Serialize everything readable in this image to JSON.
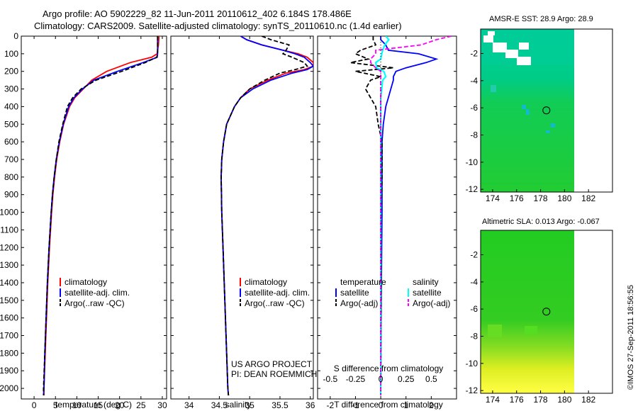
{
  "header": {
    "line1": "Argo profile: AO 5902229_82 11-Jun-2011 20110612_402 6.184S 178.486E",
    "line2": "Climatology: CARS2009. Satellite-adjusted climatology: synTS_20110610.nc (1.4d earlier)"
  },
  "footer": {
    "project": "US ARGO PROJECT",
    "pi": "PI: DEAN ROEMMICH",
    "stamp": "©IMOS 27-Sep-2011 18:56:55"
  },
  "depth_ticks": [
    "0",
    "100",
    "200",
    "300",
    "400",
    "500",
    "600",
    "700",
    "800",
    "900",
    "1000",
    "1100",
    "1200",
    "1300",
    "1400",
    "1500",
    "1600",
    "1700",
    "1800",
    "1900",
    "2000"
  ],
  "legend_profile": {
    "climatology": "climatology",
    "satellite": "satellite-adj. clim.",
    "argo": "Argo(..raw -QC)"
  },
  "legend_diff": {
    "temperature_head": "temperature",
    "salinity_head": "salinity",
    "t_sat": "satellite",
    "t_argo": "Argo(-adj)",
    "s_sat": "satellite",
    "s_argo": "Argo(-adj)"
  },
  "colors": {
    "climatology": "#ff0000",
    "satellite": "#0000ff",
    "argo": "#000000",
    "salinity_sat": "#00ffff",
    "salinity_argo": "#ff00ff",
    "sst_land": "#ffffff",
    "sla_low": "#ffff33",
    "sla_mid": "#00cc00"
  },
  "chart_data": [
    {
      "type": "line",
      "title": "",
      "xlabel": "temperature (deg C)",
      "ylabel": "",
      "xlim": [
        -3,
        31
      ],
      "ylim": [
        2060,
        0
      ],
      "xticks": [
        "0",
        "5",
        "10",
        "15",
        "20",
        "25",
        "30"
      ],
      "xtick_values": [
        0,
        5,
        10,
        15,
        20,
        25,
        30
      ],
      "depth": [
        0,
        10,
        50,
        100,
        120,
        150,
        200,
        250,
        300,
        350,
        400,
        500,
        600,
        700,
        800,
        900,
        1000,
        1200,
        1400,
        1600,
        1800,
        2000,
        2040
      ],
      "series": [
        {
          "name": "climatology",
          "values": [
            29.2,
            29.2,
            29.1,
            28.8,
            27.5,
            22.5,
            17.0,
            13.5,
            11.5,
            9.5,
            8.3,
            6.9,
            6.0,
            5.3,
            4.8,
            4.4,
            4.1,
            3.6,
            3.2,
            2.9,
            2.6,
            2.3,
            2.3
          ]
        },
        {
          "name": "satellite-adj. clim.",
          "values": [
            28.9,
            28.9,
            28.9,
            28.9,
            28.8,
            25.5,
            19.5,
            14.0,
            11.3,
            9.3,
            8.1,
            6.8,
            5.9,
            5.2,
            4.7,
            4.3,
            4.0,
            3.5,
            3.1,
            2.8,
            2.5,
            2.3,
            2.2
          ]
        },
        {
          "name": "Argo(..raw -QC)",
          "values": [
            28.9,
            28.9,
            28.9,
            28.9,
            28.7,
            26.0,
            20.5,
            14.5,
            11.0,
            9.0,
            7.8,
            6.7,
            5.8,
            5.2,
            4.7,
            4.3,
            4.0,
            3.5,
            3.1,
            2.8,
            2.5,
            2.2,
            2.2
          ]
        }
      ]
    },
    {
      "type": "line",
      "title": "",
      "xlabel": "salinity",
      "ylabel": "",
      "xlim": [
        33.7,
        36.05
      ],
      "ylim": [
        2060,
        0
      ],
      "xticks": [
        "34",
        "34.5",
        "35",
        "35.5",
        "36"
      ],
      "xtick_values": [
        34,
        34.5,
        35,
        35.5,
        36
      ],
      "depth": [
        0,
        20,
        50,
        80,
        100,
        120,
        150,
        170,
        190,
        210,
        250,
        300,
        350,
        400,
        500,
        600,
        700,
        800,
        1000,
        1200,
        1400,
        1600,
        1800,
        2000,
        2040
      ],
      "series": [
        {
          "name": "climatology",
          "values": [
            34.85,
            34.95,
            35.2,
            35.55,
            35.8,
            35.95,
            36.05,
            36.05,
            35.9,
            35.6,
            35.3,
            35.0,
            34.85,
            34.75,
            34.62,
            34.57,
            34.54,
            34.53,
            34.54,
            34.56,
            34.58,
            34.6,
            34.62,
            34.64,
            34.65
          ]
        },
        {
          "name": "satellite-adj. clim.",
          "values": [
            34.85,
            34.95,
            35.2,
            35.55,
            35.75,
            35.9,
            36.0,
            36.05,
            35.95,
            35.7,
            35.35,
            35.05,
            34.85,
            34.75,
            34.62,
            34.57,
            34.54,
            34.53,
            34.54,
            34.56,
            34.58,
            34.6,
            34.62,
            34.64,
            34.65
          ]
        },
        {
          "name": "Argo(..raw -QC)",
          "values": [
            35.2,
            35.35,
            35.65,
            35.6,
            35.55,
            35.7,
            35.9,
            35.95,
            35.75,
            35.5,
            35.25,
            35.0,
            34.85,
            34.75,
            34.62,
            34.57,
            34.54,
            34.53,
            34.54,
            34.56,
            34.58,
            34.6,
            34.62,
            34.64,
            34.65
          ]
        }
      ]
    },
    {
      "type": "line",
      "title": "",
      "xlabel": "T difference from climatology",
      "x2label": "S difference from climatology",
      "ylabel": "",
      "xlim": [
        -2.5,
        3
      ],
      "x2lim": [
        -0.625,
        0.75
      ],
      "ylim": [
        2060,
        0
      ],
      "xticks": [
        "-2",
        "-1",
        "0",
        "1",
        "2"
      ],
      "xtick_values": [
        -2,
        -1,
        0,
        1,
        2
      ],
      "x2ticks": [
        "-0.5",
        "-0.25",
        "0",
        "0.25",
        "0.5"
      ],
      "x2tick_values": [
        -0.5,
        -0.25,
        0,
        0.25,
        0.5
      ],
      "depth": [
        0,
        20,
        50,
        80,
        100,
        130,
        150,
        180,
        200,
        230,
        250,
        300,
        350,
        400,
        500,
        600,
        800,
        1000,
        1500,
        2000,
        2040
      ],
      "series": [
        {
          "name": "temperature satellite",
          "axis": "T",
          "values": [
            0,
            0,
            0.2,
            0.3,
            1.5,
            2.2,
            1.8,
            1.0,
            0.6,
            0.5,
            0.5,
            0.4,
            0.3,
            0.2,
            0.1,
            0.05,
            0.05,
            0.05,
            0.02,
            0,
            0
          ]
        },
        {
          "name": "temperature Argo(-adj)",
          "axis": "T",
          "values": [
            -0.3,
            -0.3,
            -0.2,
            -0.8,
            -1.0,
            -0.5,
            -1.2,
            0.5,
            -1.0,
            0.0,
            -0.4,
            -0.6,
            -0.4,
            -0.2,
            -0.1,
            0.05,
            0.05,
            0.02,
            0.02,
            0,
            0
          ]
        },
        {
          "name": "salinity satellite",
          "axis": "S",
          "values": [
            0.05,
            0.08,
            0.04,
            0.02,
            0.01,
            0.0,
            -0.05,
            -0.04,
            0.03,
            0.05,
            0.02,
            0.01,
            0.0,
            0.0,
            0.0,
            0.0,
            0.0,
            0.0,
            0.0,
            0.0,
            0.0
          ]
        },
        {
          "name": "salinity Argo(-adj)",
          "axis": "S",
          "values": [
            0.7,
            0.55,
            0.4,
            -0.05,
            -0.05,
            -0.1,
            -0.1,
            -0.05,
            0.0,
            0.0,
            0.0,
            0.0,
            0.0,
            0.0,
            0.0,
            0.0,
            0.0,
            0.0,
            0.0,
            0.0,
            0.0
          ]
        }
      ]
    },
    {
      "type": "heatmap",
      "title": "AMSR-E SST: 28.9 Argo: 28.9",
      "xlabel": "",
      "ylabel": "",
      "xlim": [
        173,
        184
      ],
      "ylim": [
        -12.2,
        -0.2
      ],
      "xticks": [
        "174",
        "176",
        "178",
        "180",
        "182"
      ],
      "xtick_values": [
        174,
        176,
        178,
        180,
        182
      ],
      "yticks": [
        "-2",
        "-4",
        "-6",
        "-8",
        "-10",
        "-12"
      ],
      "ytick_values": [
        -2,
        -4,
        -6,
        -8,
        -10,
        -12
      ],
      "argo_position": {
        "lon": 178.486,
        "lat": -6.184
      }
    },
    {
      "type": "heatmap",
      "title": "Altimetric SLA: 0.013 Argo: -0.067",
      "xlabel": "",
      "ylabel": "",
      "xlim": [
        173,
        184
      ],
      "ylim": [
        -12.2,
        -0.2
      ],
      "xticks": [
        "174",
        "176",
        "178",
        "180",
        "182"
      ],
      "xtick_values": [
        174,
        176,
        178,
        180,
        182
      ],
      "yticks": [
        "-2",
        "-4",
        "-6",
        "-8",
        "-10",
        "-12"
      ],
      "ytick_values": [
        -2,
        -4,
        -6,
        -8,
        -10,
        -12
      ],
      "argo_position": {
        "lon": 178.486,
        "lat": -6.184
      }
    }
  ]
}
